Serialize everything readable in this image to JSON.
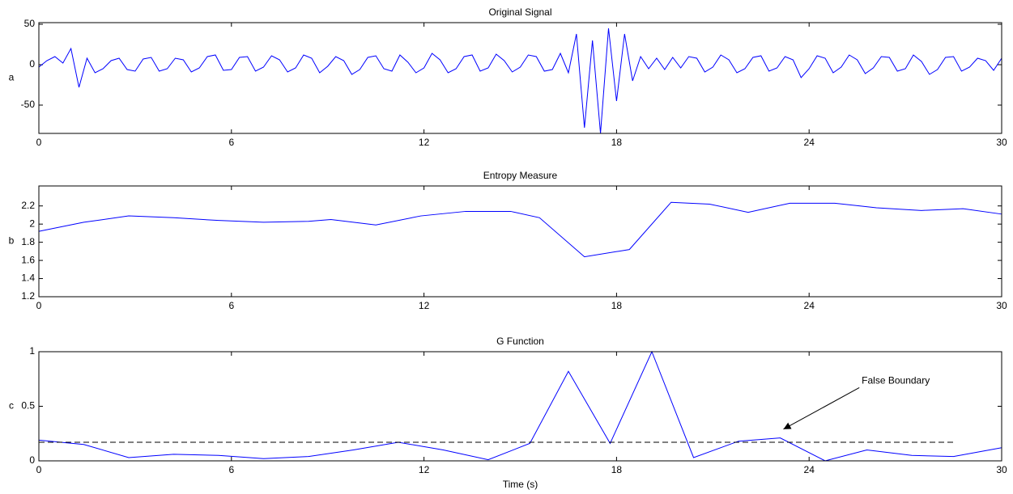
{
  "chart_data": [
    {
      "type": "line",
      "title": "Original Signal",
      "ylabel": "a",
      "color": "#0000ff",
      "x": [
        0,
        0.25,
        0.5,
        0.75,
        1,
        1.25,
        1.5,
        1.75,
        2,
        2.25,
        2.5,
        2.75,
        3,
        3.25,
        3.5,
        3.75,
        4,
        4.25,
        4.5,
        4.75,
        5,
        5.25,
        5.5,
        5.75,
        6,
        6.25,
        6.5,
        6.75,
        7,
        7.25,
        7.5,
        7.75,
        8,
        8.25,
        8.5,
        8.75,
        9,
        9.25,
        9.5,
        9.75,
        10,
        10.25,
        10.5,
        10.75,
        11,
        11.25,
        11.5,
        11.75,
        12,
        12.25,
        12.5,
        12.75,
        13,
        13.25,
        13.5,
        13.75,
        14,
        14.25,
        14.5,
        14.75,
        15,
        15.25,
        15.5,
        15.75,
        16,
        16.25,
        16.5,
        16.75,
        17,
        17.25,
        17.5,
        17.75,
        18,
        18.25,
        18.5,
        18.75,
        19,
        19.25,
        19.5,
        19.75,
        20,
        20.25,
        20.5,
        20.75,
        21,
        21.25,
        21.5,
        21.75,
        22,
        22.25,
        22.5,
        22.75,
        23,
        23.25,
        23.5,
        23.75,
        24,
        24.25,
        24.5,
        24.75,
        25,
        25.25,
        25.5,
        25.75,
        26,
        26.25,
        26.5,
        26.75,
        27,
        27.25,
        27.5,
        27.75,
        28,
        28.25,
        28.5,
        28.75,
        29,
        29.25,
        29.5,
        29.75,
        30
      ],
      "values": [
        -3,
        5,
        10,
        2,
        20,
        -28,
        8,
        -10,
        -5,
        5,
        8,
        -6,
        -8,
        7,
        9,
        -8,
        -5,
        8,
        6,
        -9,
        -4,
        10,
        12,
        -7,
        -6,
        9,
        10,
        -8,
        -3,
        11,
        6,
        -9,
        -4,
        12,
        8,
        -10,
        -2,
        10,
        5,
        -12,
        -6,
        9,
        11,
        -5,
        -8,
        12,
        3,
        -10,
        -4,
        14,
        6,
        -10,
        -5,
        10,
        12,
        -8,
        -4,
        13,
        5,
        -9,
        -3,
        12,
        10,
        -8,
        -6,
        14,
        -10,
        38,
        -78,
        30,
        -85,
        45,
        -45,
        38,
        -20,
        10,
        -5,
        8,
        -6,
        9,
        -4,
        10,
        8,
        -9,
        -3,
        12,
        6,
        -10,
        -5,
        9,
        11,
        -8,
        -4,
        10,
        6,
        -16,
        -5,
        11,
        8,
        -10,
        -3,
        12,
        6,
        -11,
        -4,
        10,
        9,
        -8,
        -5,
        12,
        4,
        -12,
        -6,
        9,
        10,
        -8,
        -3,
        8,
        5,
        -7,
        8
      ],
      "xlim": [
        0,
        30
      ],
      "xticks": [
        0,
        6,
        12,
        18,
        24,
        30
      ],
      "ylim": [
        -85,
        52
      ],
      "yticks": [
        -50,
        0,
        50
      ]
    },
    {
      "type": "line",
      "title": "Entropy Measure",
      "ylabel": "b",
      "color": "#0000ff",
      "x": [
        0,
        1.4,
        2.8,
        4.2,
        5.6,
        7.0,
        8.4,
        9.1,
        10.5,
        11.9,
        13.3,
        14.7,
        15.6,
        17.0,
        18.4,
        19.7,
        20.9,
        22.1,
        23.4,
        24.8,
        26.1,
        27.5,
        28.8,
        30
      ],
      "values": [
        1.92,
        2.02,
        2.09,
        2.07,
        2.04,
        2.02,
        2.03,
        2.05,
        1.99,
        2.09,
        2.14,
        2.14,
        2.07,
        1.64,
        1.72,
        2.24,
        2.22,
        2.13,
        2.23,
        2.23,
        2.18,
        2.15,
        2.17,
        2.11
      ],
      "xlim": [
        0,
        30
      ],
      "xticks": [
        0,
        6,
        12,
        18,
        24,
        30
      ],
      "ylim": [
        1.2,
        2.42
      ],
      "yticks": [
        1.2,
        1.4,
        1.6,
        1.8,
        2,
        2.2
      ]
    },
    {
      "type": "line",
      "title": "G Function",
      "ylabel": "c",
      "xlabel": "Time (s)",
      "color": "#0000ff",
      "x": [
        0,
        1.4,
        2.8,
        4.2,
        5.6,
        7.0,
        8.4,
        9.8,
        11.2,
        12.6,
        14.0,
        15.3,
        16.5,
        17.8,
        19.1,
        20.4,
        21.8,
        23.1,
        24.5,
        25.8,
        27.2,
        28.5,
        30
      ],
      "values": [
        0.19,
        0.15,
        0.03,
        0.06,
        0.05,
        0.02,
        0.04,
        0.1,
        0.17,
        0.1,
        0.01,
        0.16,
        0.82,
        0.16,
        1,
        0.03,
        0.18,
        0.21,
        0,
        0.1,
        0.05,
        0.04,
        0.12
      ],
      "xlim": [
        0,
        30
      ],
      "xticks": [
        0,
        6,
        12,
        18,
        24,
        30
      ],
      "ylim": [
        0,
        1
      ],
      "yticks": [
        0,
        0.5,
        1
      ],
      "hlines": [
        {
          "y": 0.17,
          "xmin": 0,
          "xmax": 28.5,
          "color": "#000000",
          "style": "dashed"
        }
      ],
      "annotations": [
        {
          "text": "False Boundary",
          "xy": [
            23.2,
            0.29
          ],
          "xytext": [
            26.7,
            0.73
          ]
        }
      ]
    }
  ]
}
